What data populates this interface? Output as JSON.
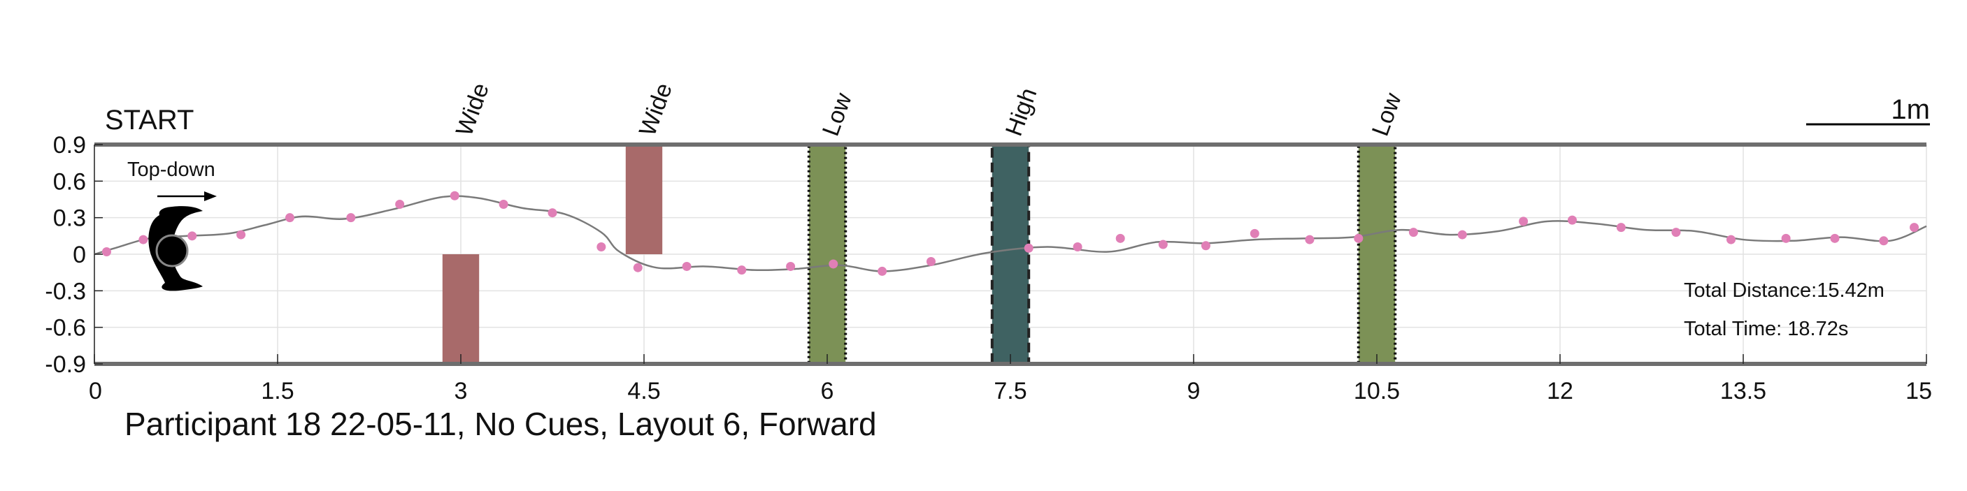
{
  "chart_data": {
    "type": "line",
    "title": "Participant 18 22-05-11, No Cues, Layout 6, Forward",
    "start_label": "START",
    "orientation_label": "Top-down",
    "scale_label": "1m",
    "xlabel": "",
    "ylabel": "",
    "xlim": [
      0,
      15
    ],
    "ylim": [
      -0.9,
      0.9
    ],
    "x_ticks": [
      0,
      1.5,
      3,
      4.5,
      6,
      7.5,
      9,
      10.5,
      12,
      13.5,
      15
    ],
    "x_tick_labels": [
      "0",
      "1.5",
      "3",
      "4.5",
      "6",
      "7.5",
      "9",
      "10.5",
      "12",
      "13.5",
      "15"
    ],
    "y_ticks": [
      0.9,
      0.6,
      0.3,
      0,
      -0.3,
      -0.6,
      -0.9
    ],
    "y_tick_labels": [
      "0.9",
      "0.6",
      "0.3",
      "0",
      "-0.3",
      "-0.6",
      "-0.9"
    ],
    "grid": true,
    "series": [
      {
        "name": "Path",
        "color": "#7a7a7a",
        "x": [
          0.0,
          0.2,
          0.45,
          0.75,
          1.1,
          1.4,
          1.7,
          2.05,
          2.45,
          2.85,
          3.15,
          3.5,
          3.85,
          4.15,
          4.3,
          4.6,
          5.0,
          5.4,
          5.75,
          6.1,
          6.45,
          6.85,
          7.3,
          7.8,
          8.3,
          8.7,
          9.1,
          9.5,
          9.9,
          10.3,
          10.7,
          11.1,
          11.5,
          11.9,
          12.3,
          12.7,
          13.1,
          13.5,
          13.9,
          14.3,
          14.7,
          15.0
        ],
        "y": [
          0.0,
          0.06,
          0.13,
          0.15,
          0.17,
          0.24,
          0.31,
          0.29,
          0.37,
          0.47,
          0.46,
          0.38,
          0.33,
          0.18,
          0.02,
          -0.11,
          -0.1,
          -0.13,
          -0.12,
          -0.09,
          -0.14,
          -0.09,
          0.01,
          0.06,
          0.02,
          0.1,
          0.09,
          0.12,
          0.13,
          0.14,
          0.2,
          0.16,
          0.19,
          0.27,
          0.25,
          0.2,
          0.19,
          0.12,
          0.11,
          0.14,
          0.11,
          0.23
        ]
      }
    ],
    "markers": {
      "name": "Samples",
      "color": "#e07fb6",
      "x": [
        0.1,
        0.4,
        0.8,
        1.2,
        1.6,
        2.1,
        2.5,
        2.95,
        3.35,
        3.75,
        4.15,
        4.45,
        4.85,
        5.3,
        5.7,
        6.05,
        6.45,
        6.85,
        7.65,
        8.05,
        8.4,
        8.75,
        9.1,
        9.5,
        9.95,
        10.35,
        10.8,
        11.2,
        11.7,
        12.1,
        12.5,
        12.95,
        13.4,
        13.85,
        14.25,
        14.65,
        14.9
      ],
      "y": [
        0.02,
        0.12,
        0.15,
        0.16,
        0.3,
        0.3,
        0.41,
        0.48,
        0.41,
        0.34,
        0.06,
        -0.11,
        -0.1,
        -0.13,
        -0.1,
        -0.08,
        -0.14,
        -0.06,
        0.05,
        0.06,
        0.13,
        0.08,
        0.07,
        0.17,
        0.12,
        0.13,
        0.18,
        0.16,
        0.27,
        0.28,
        0.22,
        0.18,
        0.12,
        0.13,
        0.13,
        0.11,
        0.22
      ]
    },
    "obstacles": [
      {
        "label": "",
        "x_start": 2.85,
        "x_end": 3.15,
        "y_bottom": -0.9,
        "y_top": 0.0,
        "fill": "#a86a6a",
        "border": "none"
      },
      {
        "label": "Wide",
        "x_start": 4.35,
        "x_end": 4.65,
        "y_bottom": 0.0,
        "y_top": 0.9,
        "fill": "#a86a6a",
        "border": "none"
      },
      {
        "label": "Low",
        "x_start": 5.85,
        "x_end": 6.15,
        "y_bottom": -0.9,
        "y_top": 0.9,
        "fill": "#7c9156",
        "border": "dotted"
      },
      {
        "label": "High",
        "x_start": 7.35,
        "x_end": 7.65,
        "y_bottom": -0.9,
        "y_top": 0.9,
        "fill": "#3f6262",
        "border": "dashed"
      },
      {
        "label": "Low",
        "x_start": 10.35,
        "x_end": 10.65,
        "y_bottom": -0.9,
        "y_top": 0.9,
        "fill": "#7c9156",
        "border": "dotted"
      }
    ],
    "top_labels": [
      {
        "text": "Wide",
        "x": 3.0
      },
      {
        "text": "Wide",
        "x": 4.5
      },
      {
        "text": "Low",
        "x": 6.0
      },
      {
        "text": "High",
        "x": 7.5
      },
      {
        "text": "Low",
        "x": 10.5
      }
    ],
    "annotations": {
      "total_distance": "Total Distance:15.42m",
      "total_time": "Total Time: 18.72s"
    }
  }
}
